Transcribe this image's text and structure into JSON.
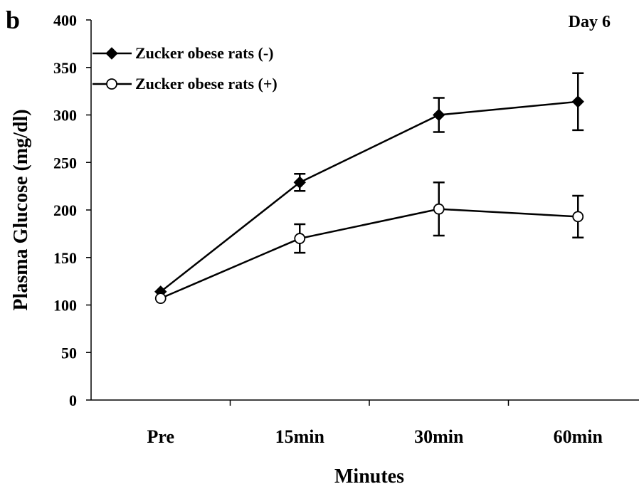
{
  "panel_label": "b",
  "annotation": "Day 6",
  "chart_data": {
    "type": "line",
    "title": "",
    "xlabel": "Minutes",
    "ylabel": "Plasma Glucose (mg/dl)",
    "categories": [
      "Pre",
      "15min",
      "30min",
      "60min"
    ],
    "ylim": [
      0,
      400
    ],
    "yticks": [
      0,
      50,
      100,
      150,
      200,
      250,
      300,
      350,
      400
    ],
    "grid": false,
    "legend_position": "top-left",
    "series": [
      {
        "name": "Zucker obese rats (-)",
        "marker": "filled-diamond",
        "color": "#000000",
        "values": [
          114,
          229,
          300,
          314
        ],
        "error": [
          0,
          9,
          18,
          30
        ]
      },
      {
        "name": "Zucker obese rats (+)",
        "marker": "open-circle",
        "color": "#000000",
        "values": [
          107,
          170,
          201,
          193
        ],
        "error": [
          0,
          15,
          28,
          22
        ]
      }
    ]
  }
}
